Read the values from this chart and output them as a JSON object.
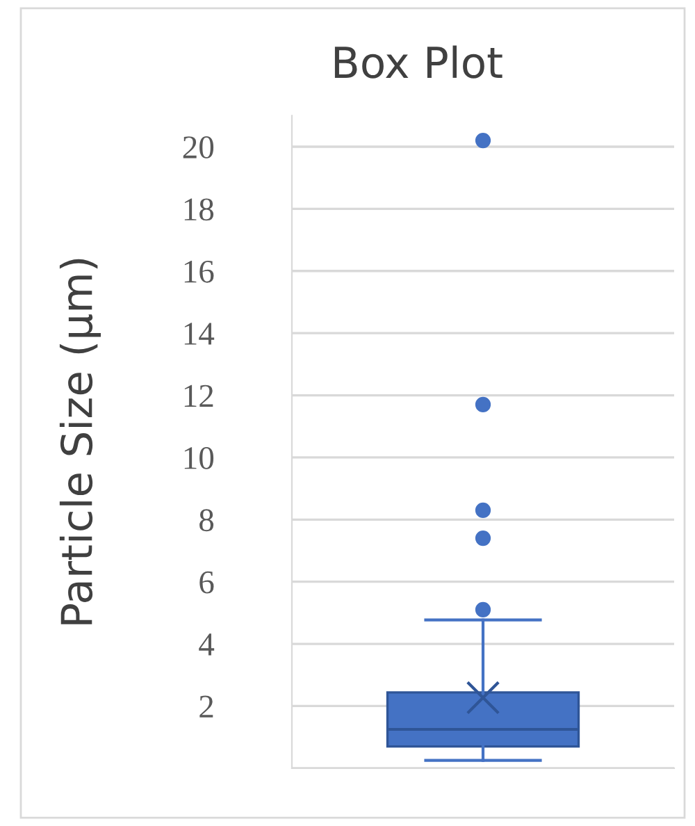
{
  "chart_data": {
    "type": "box",
    "title": "Box Plot",
    "ylabel": "Particle Size (µm)",
    "categories": [
      null
    ],
    "series": [
      {
        "color": "#4472c4",
        "boxes": [
          {
            "low": 0.25,
            "q1": 0.7,
            "median": 1.25,
            "q3": 2.44,
            "high": 4.77,
            "mean": 2.27,
            "outliers": [
              5.1,
              7.4,
              8.3,
              11.7,
              20.2
            ]
          }
        ]
      }
    ],
    "ylim": [
      0,
      21
    ],
    "yticks": [
      {
        "value": 0,
        "label": null
      },
      2,
      4,
      6,
      8,
      10,
      12,
      14,
      16,
      18,
      20
    ],
    "grid": "y"
  }
}
